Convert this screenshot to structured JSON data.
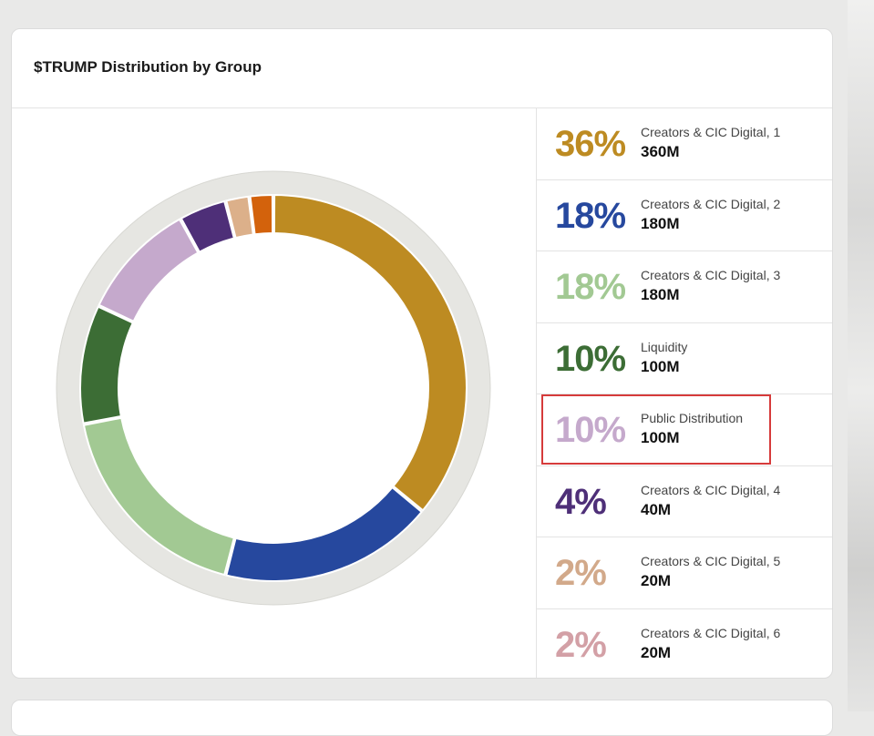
{
  "card": {
    "title": "$TRUMP Distribution by Group"
  },
  "chart_data": {
    "type": "pie",
    "title": "$TRUMP Distribution by Group",
    "style": "donut",
    "slices": [
      {
        "label": "Creators & CIC Digital, 1",
        "percent": 36,
        "pct_text": "36%",
        "amount": "360M",
        "color": "#bd8b22"
      },
      {
        "label": "Creators & CIC Digital, 2",
        "percent": 18,
        "pct_text": "18%",
        "amount": "180M",
        "color": "#26489e"
      },
      {
        "label": "Creators & CIC Digital, 3",
        "percent": 18,
        "pct_text": "18%",
        "amount": "180M",
        "color": "#a2c993"
      },
      {
        "label": "Liquidity",
        "percent": 10,
        "pct_text": "10%",
        "amount": "100M",
        "color": "#3c6d35"
      },
      {
        "label": "Public Distribution",
        "percent": 10,
        "pct_text": "10%",
        "amount": "100M",
        "color": "#c5a9cc"
      },
      {
        "label": "Creators & CIC Digital, 4",
        "percent": 4,
        "pct_text": "4%",
        "amount": "40M",
        "color": "#4e2f78"
      },
      {
        "label": "Creators & CIC Digital, 5",
        "percent": 2,
        "pct_text": "2%",
        "amount": "20M",
        "color": "#dcb08a"
      },
      {
        "label": "Creators & CIC Digital, 6",
        "percent": 2,
        "pct_text": "2%",
        "amount": "20M",
        "color": "#d3620c"
      }
    ],
    "legend_colors": [
      "#bd8b22",
      "#26489e",
      "#a2c993",
      "#3c6d35",
      "#c5a9cc",
      "#4e2f78",
      "#d2a98a",
      "#d3a0a6"
    ],
    "highlighted_index": 4,
    "track_color": "#e6e6e2"
  }
}
